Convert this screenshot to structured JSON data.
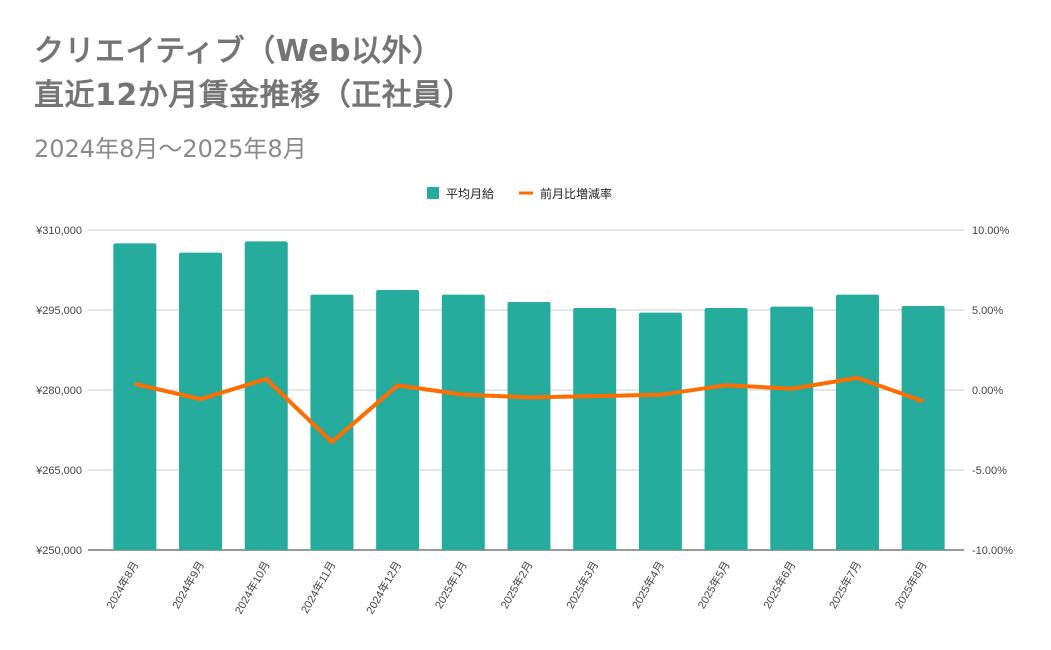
{
  "chart_data": {
    "type": "bar+line",
    "title_lines": [
      "クリエイティブ（Web以外）",
      "直近12か月賃金推移（正社員）"
    ],
    "subtitle": "2024年8月～2025年8月",
    "categories": [
      "2024年8月",
      "2024年9月",
      "2024年10月",
      "2024年11月",
      "2024年12月",
      "2025年1月",
      "2025年2月",
      "2025年3月",
      "2025年4月",
      "2025年5月",
      "2025年6月",
      "2025年7月",
      "2025年8月"
    ],
    "series": [
      {
        "name": "平均月給",
        "type": "bar",
        "axis": "left",
        "color": "#26ac9c",
        "values": [
          307500,
          305750,
          307875,
          297875,
          298750,
          297875,
          296500,
          295375,
          294500,
          295375,
          295625,
          297875,
          295750
        ]
      },
      {
        "name": "前月比増減率",
        "type": "line",
        "axis": "right",
        "color": "#ff6d01",
        "values": [
          0.38,
          -0.57,
          0.69,
          -3.25,
          0.29,
          -0.29,
          -0.46,
          -0.38,
          -0.3,
          0.3,
          0.08,
          0.76,
          -0.71
        ]
      }
    ],
    "left_axis": {
      "ylim": [
        250000,
        310000
      ],
      "ticks": [
        250000,
        265000,
        280000,
        295000,
        310000
      ],
      "tick_labels": [
        "¥250,000",
        "¥265,000",
        "¥280,000",
        "¥295,000",
        "¥310,000"
      ]
    },
    "right_axis": {
      "ylim": [
        -10,
        10
      ],
      "ticks": [
        -10,
        -5,
        0,
        5,
        10
      ],
      "tick_labels": [
        "-10.00%",
        "-5.00%",
        "0.00%",
        "5.00%",
        "10.00%"
      ]
    },
    "grid": true,
    "legend_position": "top"
  }
}
